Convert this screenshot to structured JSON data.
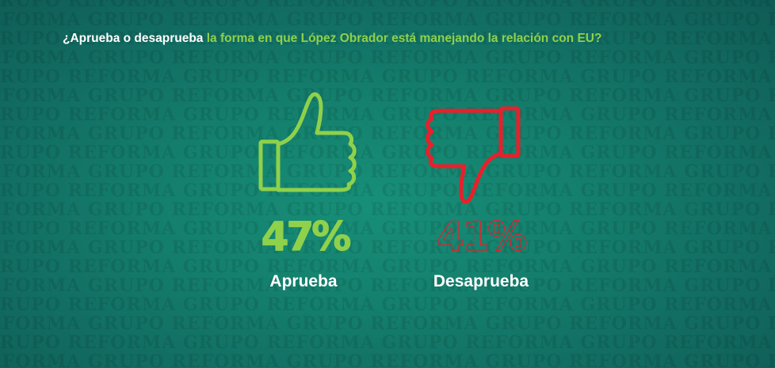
{
  "question": {
    "part1": "¿Aprueba o desaprueba",
    "part2": "la forma en que López Obrador está manejando la relación con EU?"
  },
  "watermark_text": "GRUPO REFORMA",
  "colors": {
    "approve": "#8fd14a",
    "disapprove": "#e8202b",
    "label": "#ffffff"
  },
  "icons": {
    "approve": "thumbs-up-icon",
    "disapprove": "thumbs-down-icon"
  },
  "chart_data": {
    "type": "bar",
    "categories": [
      "Aprueba",
      "Desaprueba"
    ],
    "values": [
      47,
      41
    ],
    "value_labels": [
      "47%",
      "41%"
    ],
    "unit": "%",
    "title": "",
    "xlabel": "",
    "ylabel": ""
  }
}
